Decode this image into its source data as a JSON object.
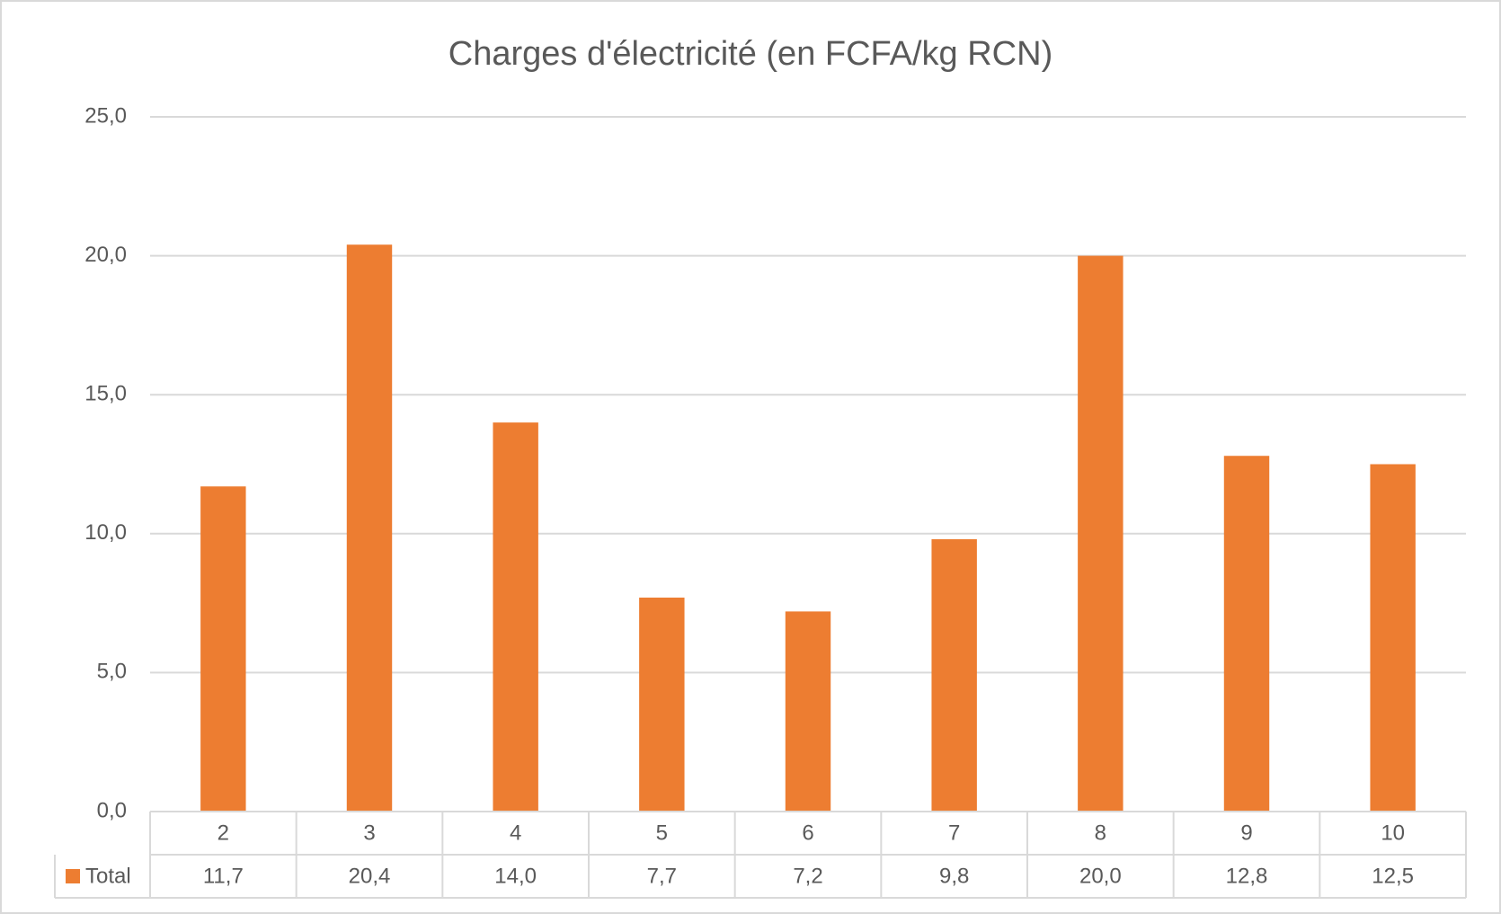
{
  "chart_data": {
    "type": "bar",
    "title": "Charges d'électricité (en FCFA/kg RCN)",
    "categories": [
      "2",
      "3",
      "4",
      "5",
      "6",
      "7",
      "8",
      "9",
      "10"
    ],
    "series": [
      {
        "name": "Total",
        "color": "#ed7d31",
        "values": [
          11.7,
          20.4,
          14.0,
          7.7,
          7.2,
          9.8,
          20.0,
          12.8,
          12.5
        ],
        "value_labels": [
          "11,7",
          "20,4",
          "14,0",
          "7,7",
          "7,2",
          "9,8",
          "20,0",
          "12,8",
          "12,5"
        ]
      }
    ],
    "ylim": [
      0,
      25
    ],
    "yticks": [
      {
        "value": 0,
        "label": "0,0"
      },
      {
        "value": 5,
        "label": "5,0"
      },
      {
        "value": 10,
        "label": "10,0"
      },
      {
        "value": 15,
        "label": "15,0"
      },
      {
        "value": 20,
        "label": "20,0"
      },
      {
        "value": 25,
        "label": "25,0"
      }
    ],
    "grid": true,
    "legend": "data-table"
  }
}
